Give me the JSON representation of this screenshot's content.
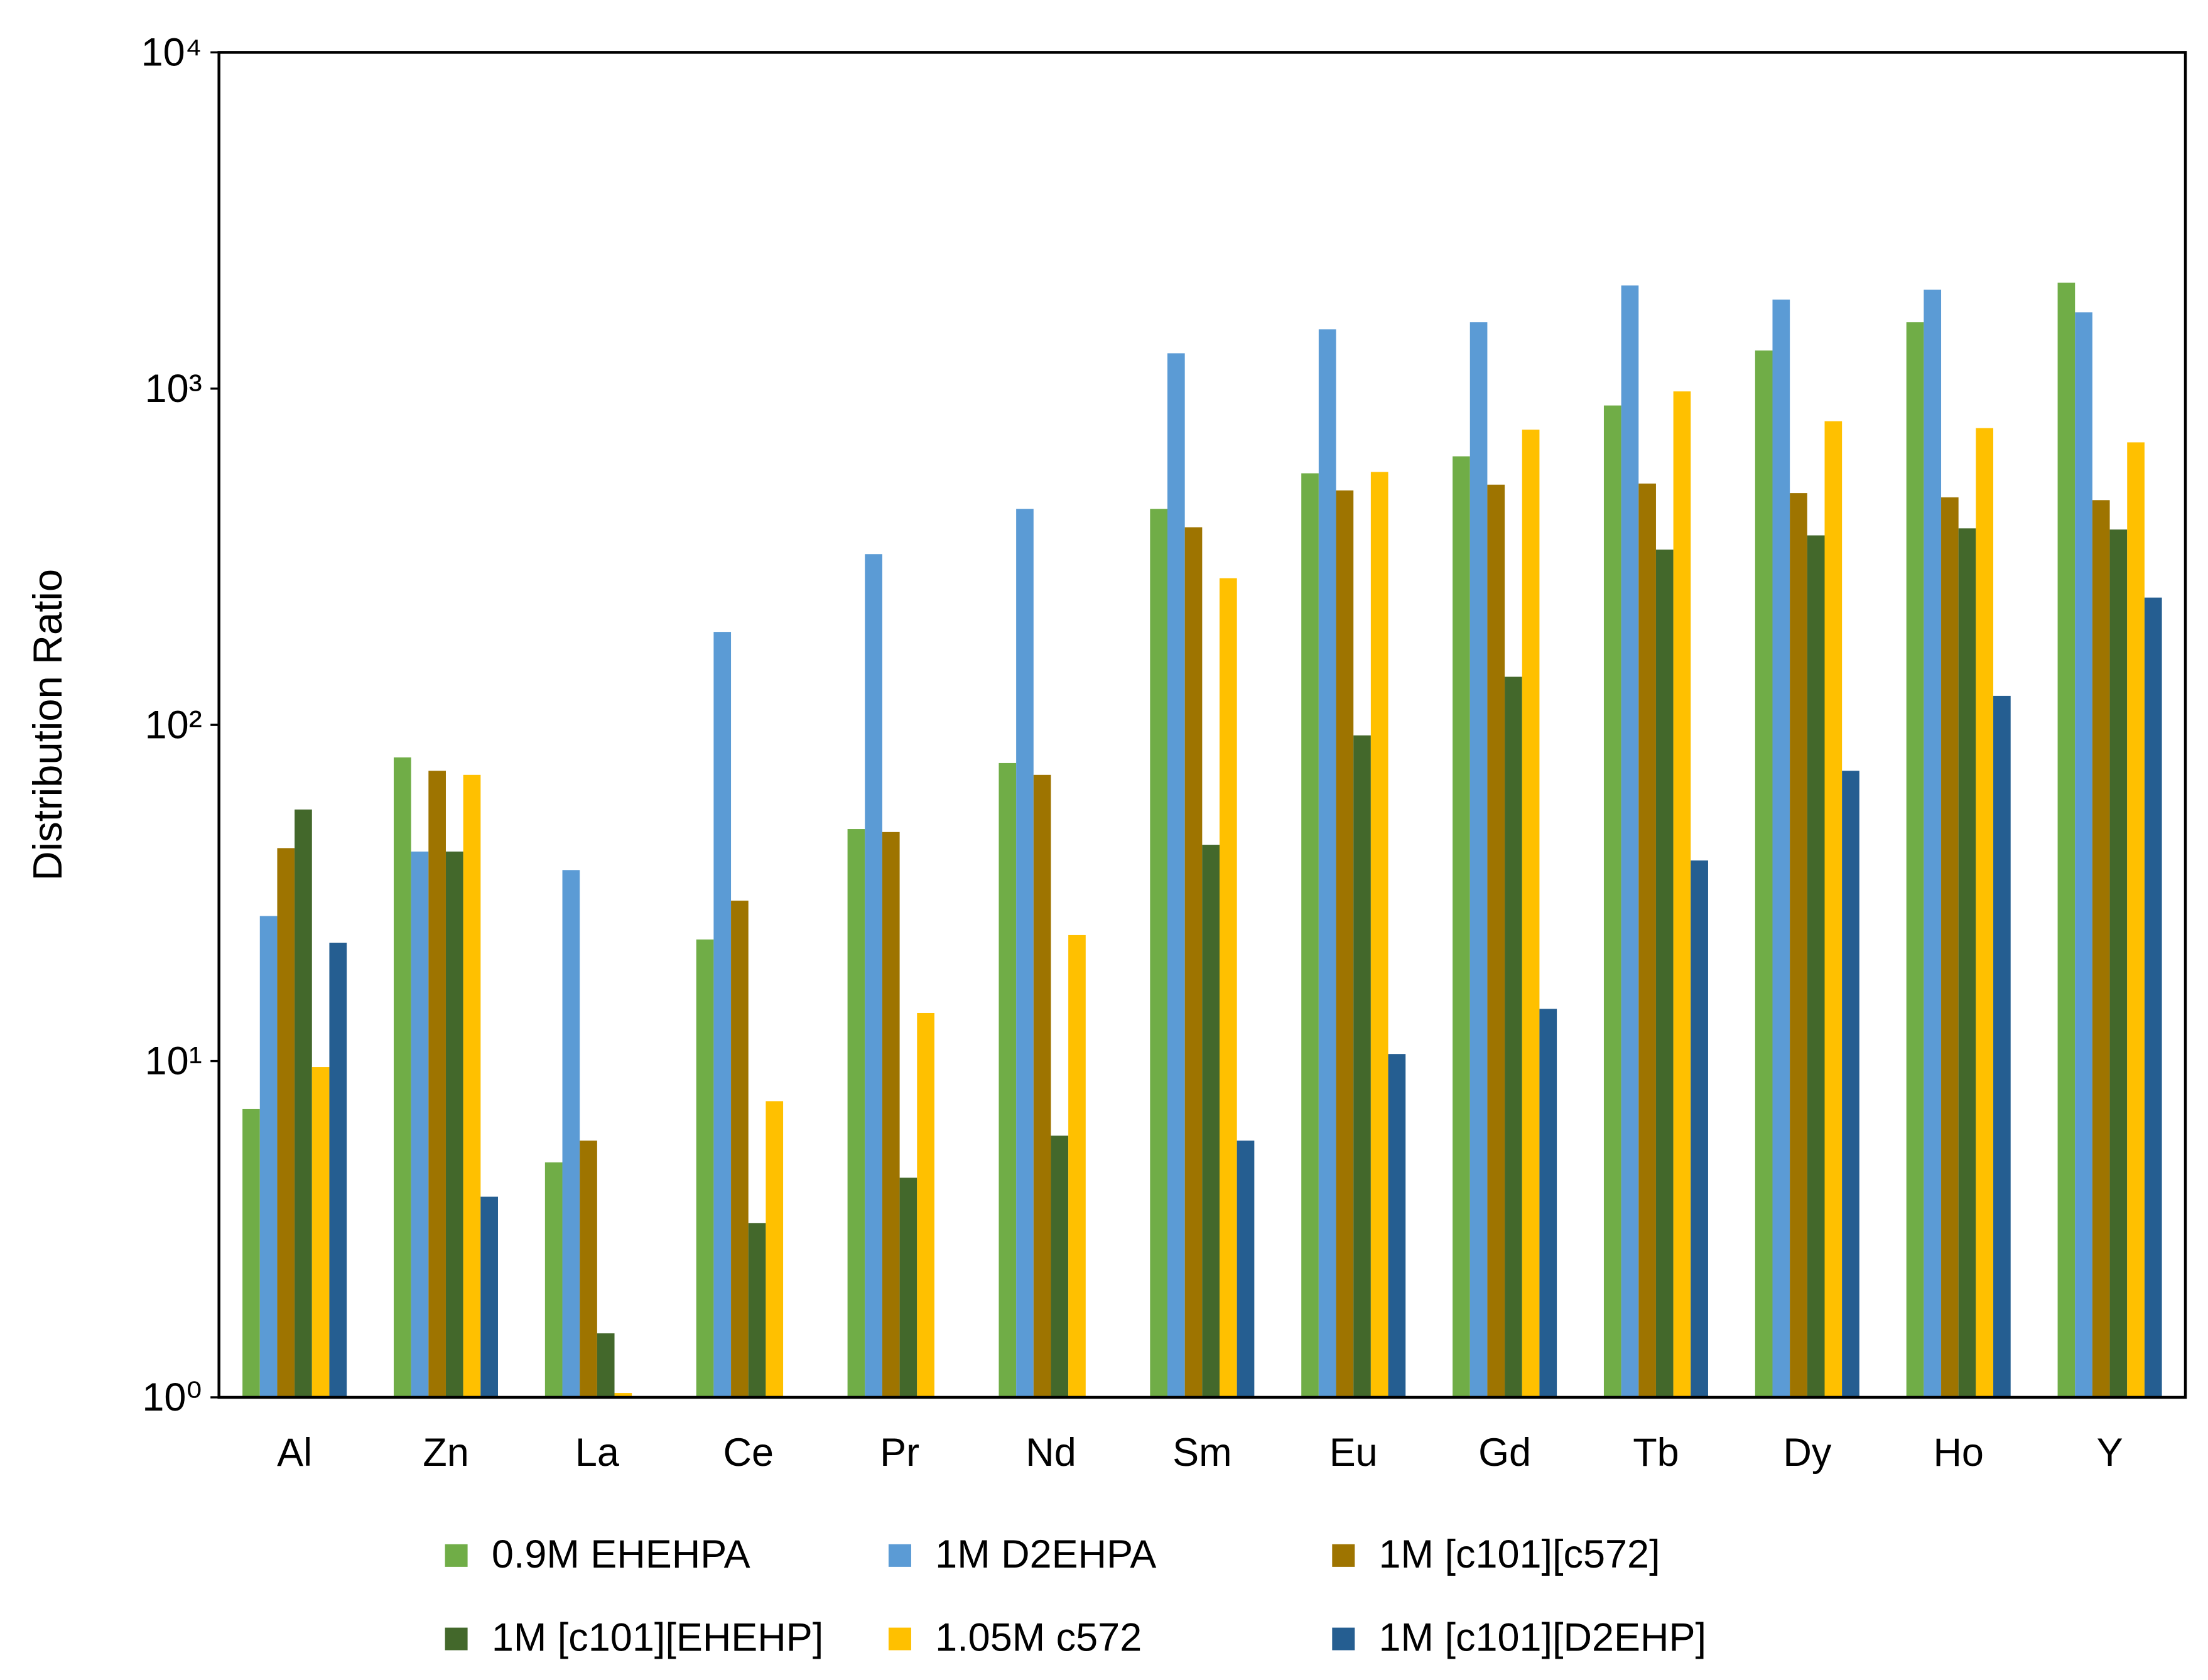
{
  "chart_data": {
    "type": "bar",
    "y_label": "Distribution Ratio",
    "log_scale": true,
    "grid": false,
    "legend_position": "bottom",
    "categories": [
      "Al",
      "Zn",
      "La",
      "Ce",
      "Pr",
      "Nd",
      "Sm",
      "Eu",
      "Gd",
      "Tb",
      "Dy",
      "Ho",
      "Y"
    ],
    "ylim": [
      1,
      10000
    ],
    "yticks": [
      {
        "value": 1,
        "label": "10⁰"
      },
      {
        "value": 10,
        "label": "10¹"
      },
      {
        "value": 100,
        "label": "10²"
      },
      {
        "value": 1000,
        "label": "10³"
      },
      {
        "value": 10000,
        "label": "10⁴"
      }
    ],
    "series": [
      {
        "name": "0.9M EHEHPA",
        "color": "#70ad47",
        "values": [
          7.2,
          80,
          5,
          23,
          49,
          77,
          439,
          560,
          629,
          891,
          1298,
          1575,
          2066
        ]
      },
      {
        "name": "1M D2EHPA",
        "color": "#5b9bd5",
        "values": [
          27,
          42,
          37,
          189,
          322,
          439,
          1274,
          1501,
          1575,
          2027,
          1840,
          1968,
          1686
        ]
      },
      {
        "name": "1M [c101][c572]",
        "color": "#9e7400",
        "values": [
          43,
          73,
          5.8,
          30,
          48,
          71,
          387,
          498,
          518,
          522,
          489,
          475,
          466
        ]
      },
      {
        "name": "1M [c101][EHEHP]",
        "color": "#43682b",
        "values": [
          56,
          42,
          1.55,
          3.3,
          4.5,
          6.0,
          44,
          93,
          139,
          332,
          366,
          384,
          381
        ]
      },
      {
        "name": "1.05M c572",
        "color": "#ffc000",
        "values": [
          9.6,
          71,
          1.03,
          7.6,
          13.9,
          23.7,
          273,
          565,
          755,
          981,
          800,
          763,
          692
        ]
      },
      {
        "name": "1M [c101][D2EHP]",
        "color": "#255e91",
        "values": [
          22.5,
          3.95,
          null,
          null,
          null,
          null,
          5.8,
          10.5,
          14.3,
          39.5,
          73,
          122,
          239
        ]
      }
    ]
  }
}
